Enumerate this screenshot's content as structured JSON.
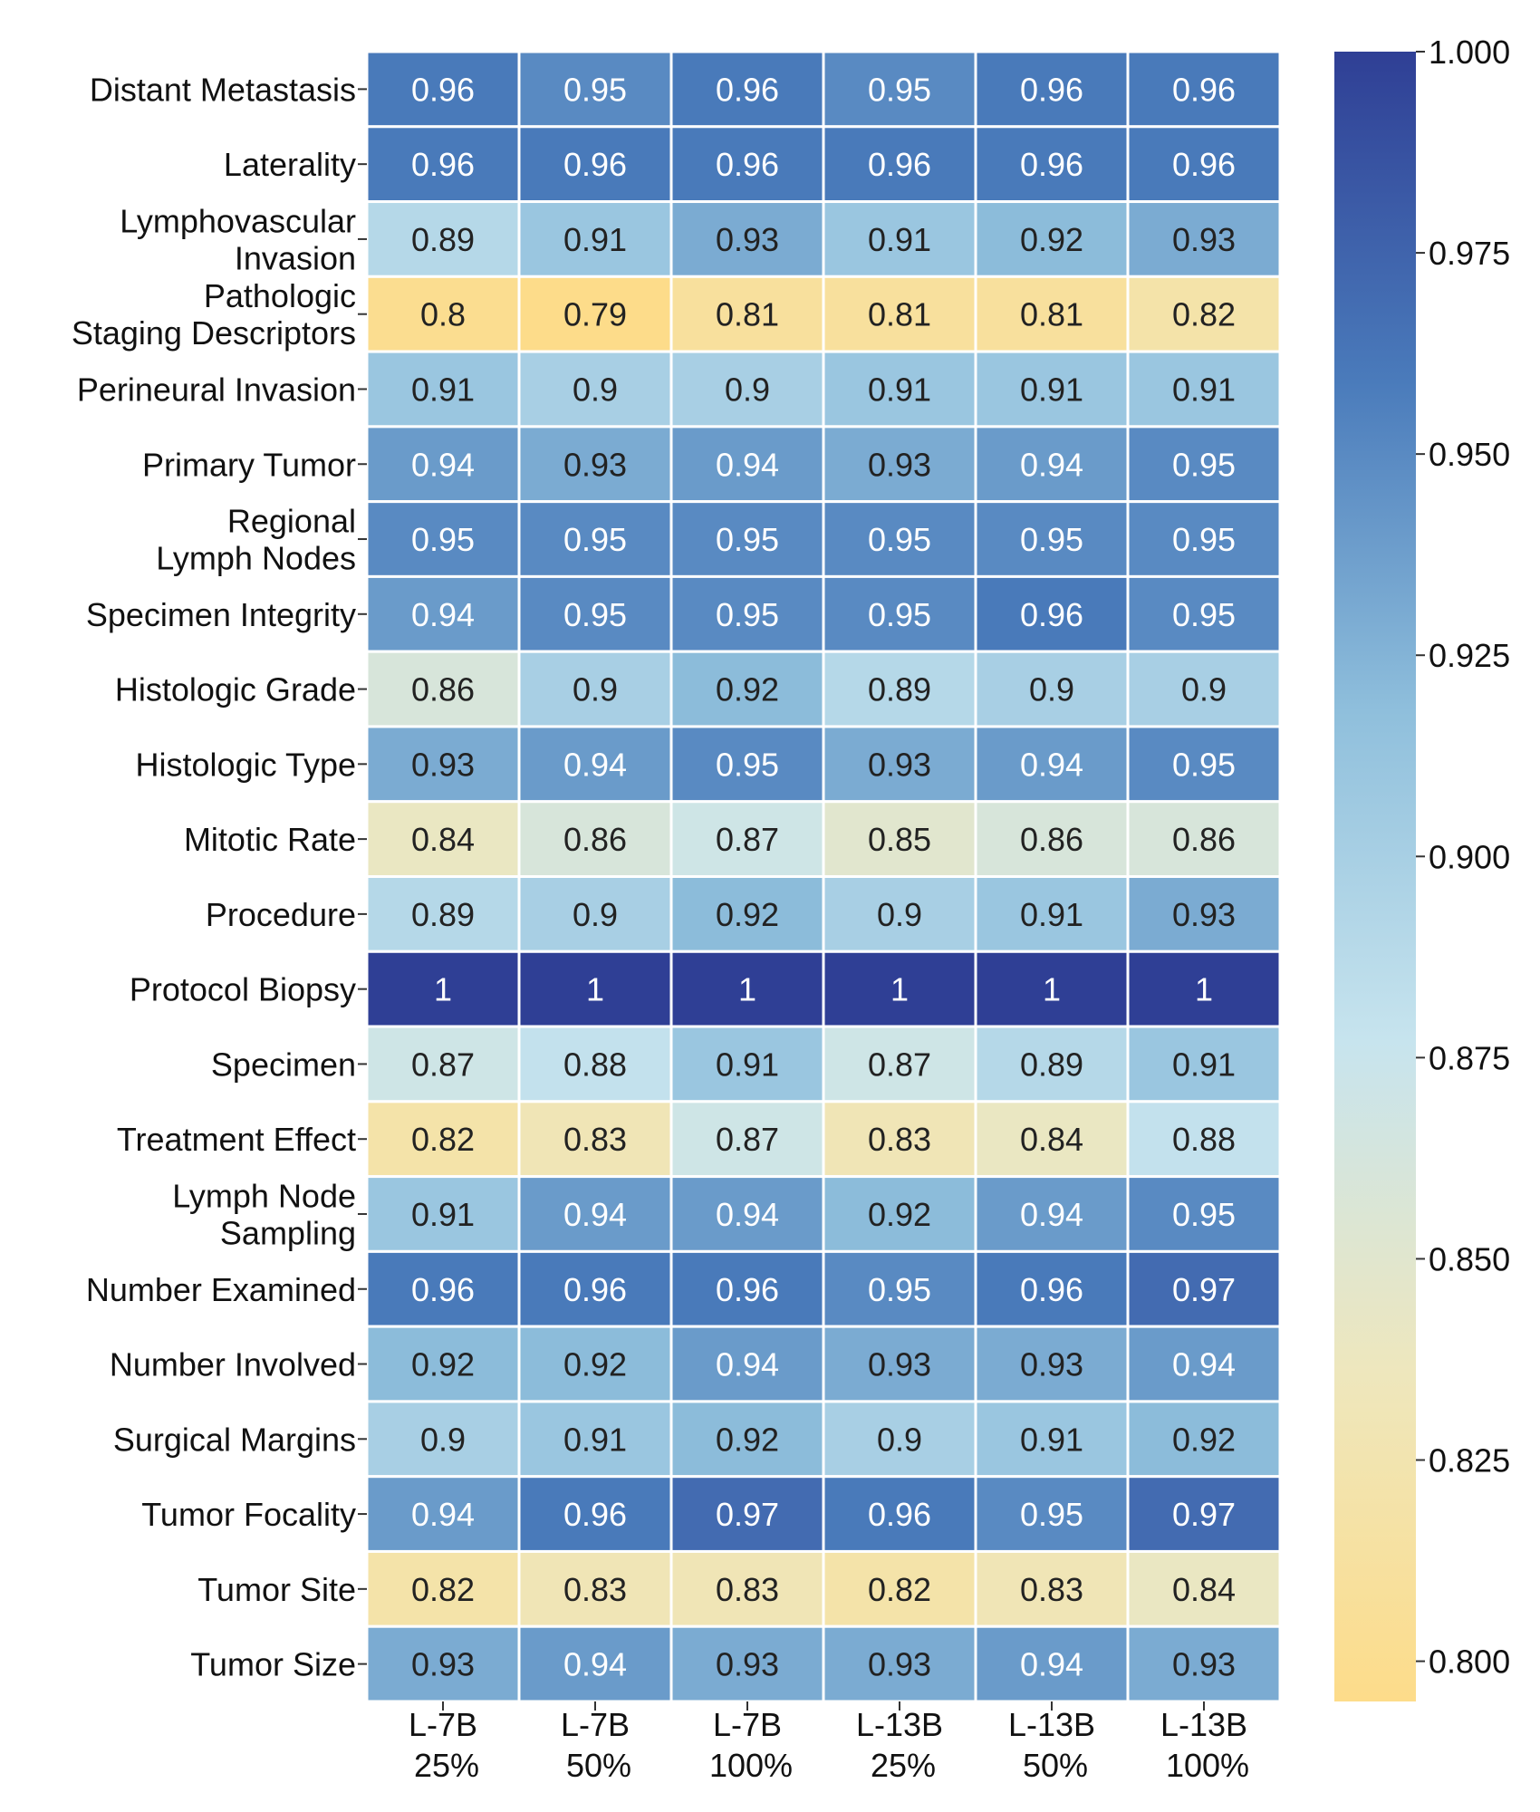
{
  "chart_data": {
    "type": "heatmap",
    "columns": [
      [
        "L-7B",
        "25%"
      ],
      [
        "L-7B",
        "50%"
      ],
      [
        "L-7B",
        "100%"
      ],
      [
        "L-13B",
        "25%"
      ],
      [
        "L-13B",
        "50%"
      ],
      [
        "L-13B",
        "100%"
      ]
    ],
    "rows": [
      [
        "Distant Metastasis"
      ],
      [
        "Laterality"
      ],
      [
        "Lymphovascular",
        "Invasion"
      ],
      [
        "Pathologic",
        "Staging Descriptors"
      ],
      [
        "Perineural Invasion"
      ],
      [
        "Primary Tumor"
      ],
      [
        "Regional",
        "Lymph Nodes"
      ],
      [
        "Specimen Integrity"
      ],
      [
        "Histologic Grade"
      ],
      [
        "Histologic Type"
      ],
      [
        "Mitotic Rate"
      ],
      [
        "Procedure"
      ],
      [
        "Protocol Biopsy"
      ],
      [
        "Specimen"
      ],
      [
        "Treatment Effect"
      ],
      [
        "Lymph Node",
        "Sampling"
      ],
      [
        "Number Examined"
      ],
      [
        "Number Involved"
      ],
      [
        "Surgical Margins"
      ],
      [
        "Tumor Focality"
      ],
      [
        "Tumor Site"
      ],
      [
        "Tumor Size"
      ]
    ],
    "values": [
      [
        0.96,
        0.95,
        0.96,
        0.95,
        0.96,
        0.96
      ],
      [
        0.96,
        0.96,
        0.96,
        0.96,
        0.96,
        0.96
      ],
      [
        0.89,
        0.91,
        0.93,
        0.91,
        0.92,
        0.93
      ],
      [
        0.8,
        0.79,
        0.81,
        0.81,
        0.81,
        0.82
      ],
      [
        0.91,
        0.9,
        0.9,
        0.91,
        0.91,
        0.91
      ],
      [
        0.94,
        0.93,
        0.94,
        0.93,
        0.94,
        0.95
      ],
      [
        0.95,
        0.95,
        0.95,
        0.95,
        0.95,
        0.95
      ],
      [
        0.94,
        0.95,
        0.95,
        0.95,
        0.96,
        0.95
      ],
      [
        0.86,
        0.9,
        0.92,
        0.89,
        0.9,
        0.9
      ],
      [
        0.93,
        0.94,
        0.95,
        0.93,
        0.94,
        0.95
      ],
      [
        0.84,
        0.86,
        0.87,
        0.85,
        0.86,
        0.86
      ],
      [
        0.89,
        0.9,
        0.92,
        0.9,
        0.91,
        0.93
      ],
      [
        1,
        1,
        1,
        1,
        1,
        1
      ],
      [
        0.87,
        0.88,
        0.91,
        0.87,
        0.89,
        0.91
      ],
      [
        0.82,
        0.83,
        0.87,
        0.83,
        0.84,
        0.88
      ],
      [
        0.91,
        0.94,
        0.94,
        0.92,
        0.94,
        0.95
      ],
      [
        0.96,
        0.96,
        0.96,
        0.95,
        0.96,
        0.97
      ],
      [
        0.92,
        0.92,
        0.94,
        0.93,
        0.93,
        0.94
      ],
      [
        0.9,
        0.91,
        0.92,
        0.9,
        0.91,
        0.92
      ],
      [
        0.94,
        0.96,
        0.97,
        0.96,
        0.95,
        0.97
      ],
      [
        0.82,
        0.83,
        0.83,
        0.82,
        0.83,
        0.84
      ],
      [
        0.93,
        0.94,
        0.93,
        0.93,
        0.94,
        0.93
      ]
    ],
    "colorbar": {
      "vmin": 0.795,
      "vmax": 1.0,
      "ticks": [
        0.8,
        0.825,
        0.85,
        0.875,
        0.9,
        0.925,
        0.95,
        0.975,
        1.0
      ],
      "tick_labels": [
        "0.800",
        "0.825",
        "0.850",
        "0.875",
        "0.900",
        "0.925",
        "0.950",
        "0.975",
        "1.000"
      ],
      "colormap": [
        "#fddc8a",
        "#eee7bd",
        "#c7e4ee",
        "#8fbfdc",
        "#4a7bbb",
        "#2f3f95"
      ],
      "placement": "right"
    },
    "title": "",
    "xlabel": "",
    "ylabel": ""
  }
}
